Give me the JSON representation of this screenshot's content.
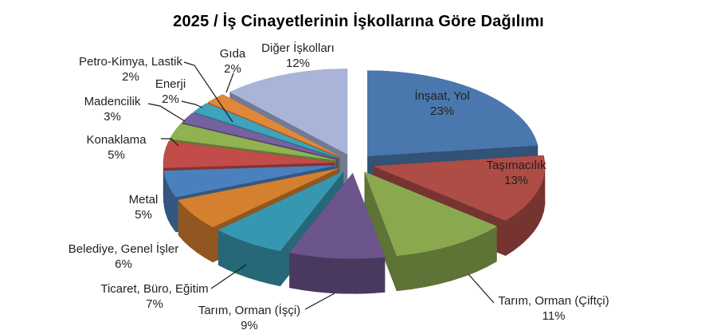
{
  "title": "2025 / İş Cinayetlerinin İşkollarına Göre Dağılımı",
  "background_color": "#FFFFFF",
  "label_text_color": "#1F1F1F",
  "leader_line_color": "#1A1A1A",
  "chart_data": {
    "type": "pie",
    "style": "3d-exploded",
    "title": "2025 / İş Cinayetlerinin İşkollarına Göre Dağılımı",
    "unit": "%",
    "start_angle_deg": -90,
    "direction": "clockwise",
    "legend": "none",
    "total": 100,
    "slices": [
      {
        "label": "İnşaat, Yol",
        "value": 23,
        "value_label": "23%",
        "color": "#4A78AE"
      },
      {
        "label": "Taşımacılık",
        "value": 13,
        "value_label": "13%",
        "color": "#AE4C46"
      },
      {
        "label": "Tarım, Orman (Çiftçi)",
        "value": 11,
        "value_label": "11%",
        "color": "#8AA94F"
      },
      {
        "label": "Tarım, Orman (İşçi)",
        "value": 9,
        "value_label": "9%",
        "color": "#6C548C"
      },
      {
        "label": "Ticaret, Büro, Eğitim",
        "value": 7,
        "value_label": "7%",
        "color": "#3897B0"
      },
      {
        "label": "Belediye, Genel İşler",
        "value": 6,
        "value_label": "6%",
        "color": "#D4802F"
      },
      {
        "label": "Metal",
        "value": 5,
        "value_label": "5%",
        "color": "#4B80BE"
      },
      {
        "label": "Konaklama",
        "value": 5,
        "value_label": "5%",
        "color": "#C24C49"
      },
      {
        "label": "Madencilik",
        "value": 3,
        "value_label": "3%",
        "color": "#90B250"
      },
      {
        "label": "Petro-Kimya, Lastik",
        "value": 2,
        "value_label": "2%",
        "color": "#75619E"
      },
      {
        "label": "Enerji",
        "value": 2,
        "value_label": "2%",
        "color": "#3EA3BC"
      },
      {
        "label": "Gıda",
        "value": 2,
        "value_label": "2%",
        "color": "#E0873A"
      },
      {
        "label": "Diğer İşkolları",
        "value": 12,
        "value_label": "12%",
        "color": "#A9B4D8"
      }
    ]
  }
}
